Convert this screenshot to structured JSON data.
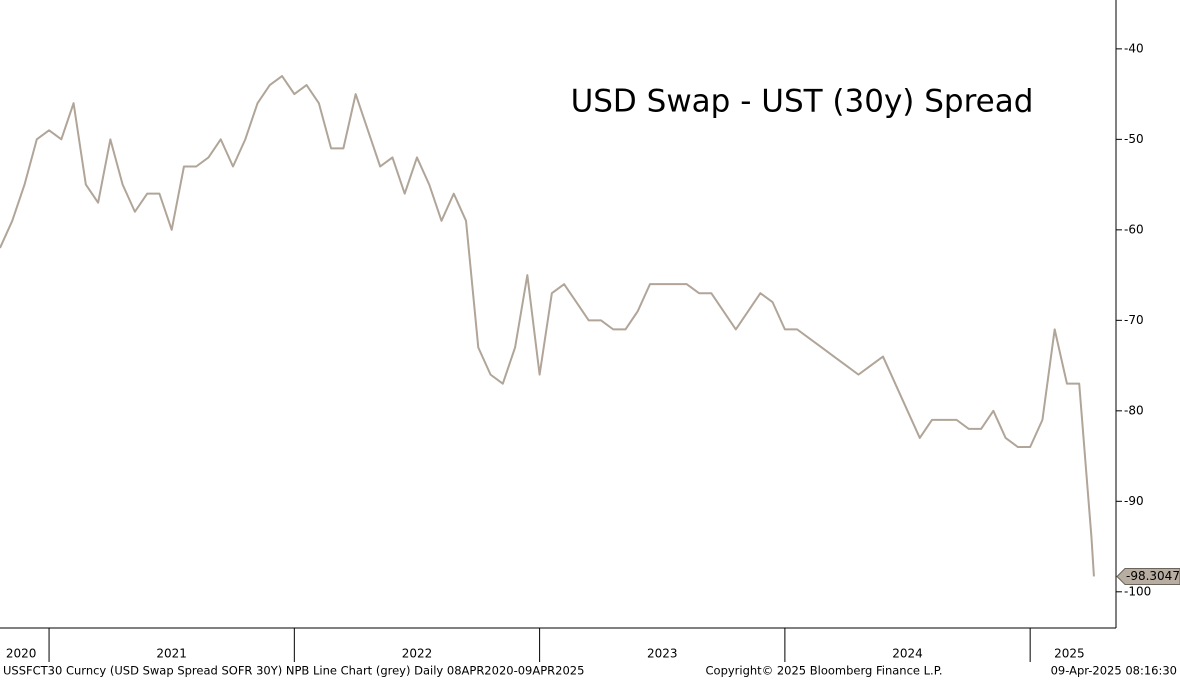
{
  "chart_data": {
    "type": "line",
    "title": "USD Swap - UST (30y) Spread",
    "footer_left": "USSFCT30 Curncy (USD Swap Spread SOFR 30Y) NPB Line Chart (grey)  Daily 08APR2020-09APR2025",
    "footer_center": "Copyright© 2025 Bloomberg Finance L.P.",
    "footer_right": "09-Apr-2025 08:16:30",
    "x": [
      2020.8,
      2020.85,
      2020.9,
      2020.95,
      2021.0,
      2021.05,
      2021.1,
      2021.15,
      2021.2,
      2021.25,
      2021.3,
      2021.35,
      2021.4,
      2021.45,
      2021.5,
      2021.55,
      2021.6,
      2021.65,
      2021.7,
      2021.75,
      2021.8,
      2021.85,
      2021.9,
      2021.95,
      2022.0,
      2022.05,
      2022.1,
      2022.15,
      2022.2,
      2022.25,
      2022.3,
      2022.35,
      2022.4,
      2022.45,
      2022.5,
      2022.55,
      2022.6,
      2022.65,
      2022.7,
      2022.75,
      2022.8,
      2022.85,
      2022.9,
      2022.95,
      2023.0,
      2023.05,
      2023.1,
      2023.15,
      2023.2,
      2023.25,
      2023.3,
      2023.35,
      2023.4,
      2023.45,
      2023.5,
      2023.55,
      2023.6,
      2023.65,
      2023.7,
      2023.75,
      2023.8,
      2023.85,
      2023.9,
      2023.95,
      2024.0,
      2024.05,
      2024.1,
      2024.15,
      2024.2,
      2024.25,
      2024.3,
      2024.35,
      2024.4,
      2024.45,
      2024.5,
      2024.55,
      2024.6,
      2024.65,
      2024.7,
      2024.75,
      2024.8,
      2024.85,
      2024.9,
      2024.95,
      2025.0,
      2025.05,
      2025.1,
      2025.15,
      2025.2,
      2025.25,
      2025.26
    ],
    "series": [
      {
        "color": "#b0a598",
        "values": [
          -62,
          -59,
          -55,
          -50,
          -49,
          -50,
          -46,
          -55,
          -57,
          -50,
          -55,
          -58,
          -56,
          -56,
          -60,
          -53,
          -53,
          -52,
          -50,
          -53,
          -50,
          -46,
          -44,
          -43,
          -45,
          -44,
          -46,
          -51,
          -51,
          -45,
          -49,
          -53,
          -52,
          -56,
          -52,
          -55,
          -59,
          -56,
          -59,
          -73,
          -76,
          -77,
          -73,
          -65,
          -76,
          -67,
          -66,
          -68,
          -70,
          -70,
          -71,
          -71,
          -69,
          -66,
          -66,
          -66,
          -66,
          -67,
          -67,
          -69,
          -71,
          -69,
          -67,
          -68,
          -71,
          -71,
          -72,
          -73,
          -74,
          -75,
          -76,
          -75,
          -74,
          -77,
          -80,
          -83,
          -81,
          -81,
          -81,
          -82,
          -82,
          -80,
          -83,
          -84,
          -84,
          -81,
          -71,
          -77,
          -77,
          -94,
          -98.3047
        ]
      }
    ],
    "xlim": [
      2020.8,
      2025.35
    ],
    "xticks": [
      2021,
      2022,
      2023,
      2024,
      2025
    ],
    "xtick_labels": [
      {
        "value": 2020.886,
        "label": "2020"
      },
      {
        "value": 2021.5,
        "label": "2021"
      },
      {
        "value": 2022.5,
        "label": "2022"
      },
      {
        "value": 2023.5,
        "label": "2023"
      },
      {
        "value": 2024.5,
        "label": "2024"
      },
      {
        "value": 2025.16,
        "label": "2025"
      }
    ],
    "ylim": [
      -104,
      -34.6
    ],
    "yticks": [
      -40,
      -50,
      -60,
      -70,
      -80,
      -90,
      -100
    ],
    "y_axis_side": "right"
  }
}
